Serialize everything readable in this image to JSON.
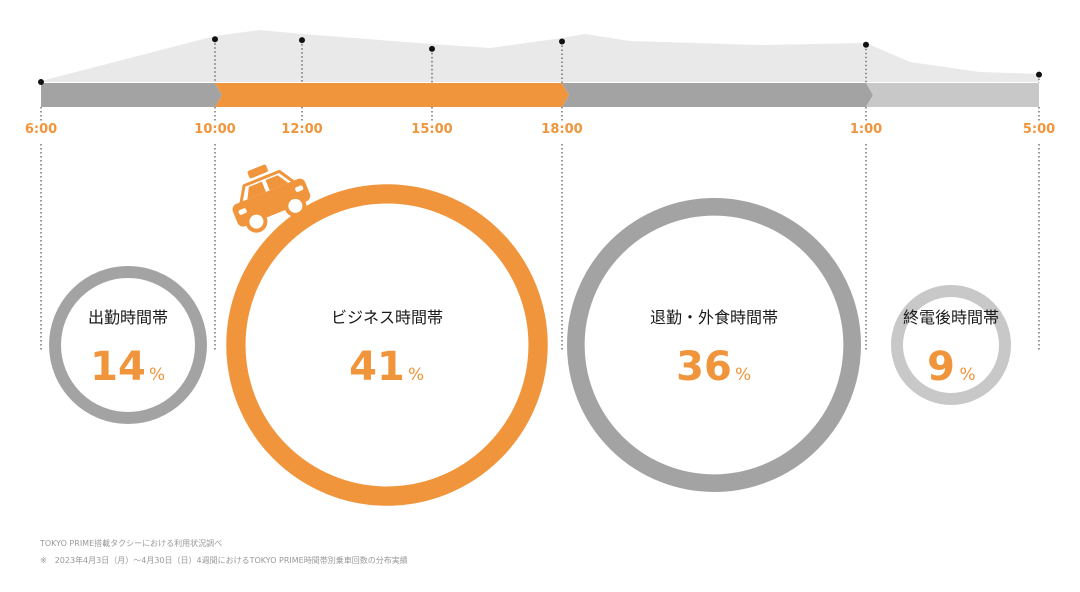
{
  "chart_data": {
    "type": "timeline-bubble",
    "time_ticks": [
      "6:00",
      "10:00",
      "12:00",
      "15:00",
      "18:00",
      "1:00",
      "5:00"
    ],
    "demand_curve_markers": [
      {
        "time": "6:00",
        "relative_level": 0.0
      },
      {
        "time": "10:00",
        "relative_level": 0.93
      },
      {
        "time": "12:00",
        "relative_level": 0.91
      },
      {
        "time": "15:00",
        "relative_level": 0.72
      },
      {
        "time": "18:00",
        "relative_level": 0.88
      },
      {
        "time": "1:00",
        "relative_level": 0.81
      },
      {
        "time": "5:00",
        "relative_level": 0.16
      }
    ],
    "segments": [
      {
        "title": "出勤時間帯",
        "value": 14,
        "unit": "%",
        "start": "6:00",
        "end": "10:00",
        "color": "#a3a3a3"
      },
      {
        "title": "ビジネス時間帯",
        "value": 41,
        "unit": "%",
        "start": "10:00",
        "end": "18:00",
        "color": "#f0953b"
      },
      {
        "title": "退勤・外食時間帯",
        "value": 36,
        "unit": "%",
        "start": "18:00",
        "end": "1:00",
        "color": "#a3a3a3"
      },
      {
        "title": "終電後時間帯",
        "value": 9,
        "unit": "%",
        "start": "1:00",
        "end": "5:00",
        "color": "#c8c8c8"
      }
    ]
  },
  "colors": {
    "accent": "#f0953b",
    "gray_dark": "#a3a3a3",
    "gray_light": "#c8c8c8",
    "area": "#e9e9e9",
    "text": "#1a1a1a"
  },
  "footnotes": {
    "source": "TOKYO PRIME搭載タクシーにおける利用状況調べ",
    "period": "※　2023年4月3日（月）～4月30日（日）4週間におけるTOKYO PRIME時間帯別乗車回数の分布実績"
  }
}
